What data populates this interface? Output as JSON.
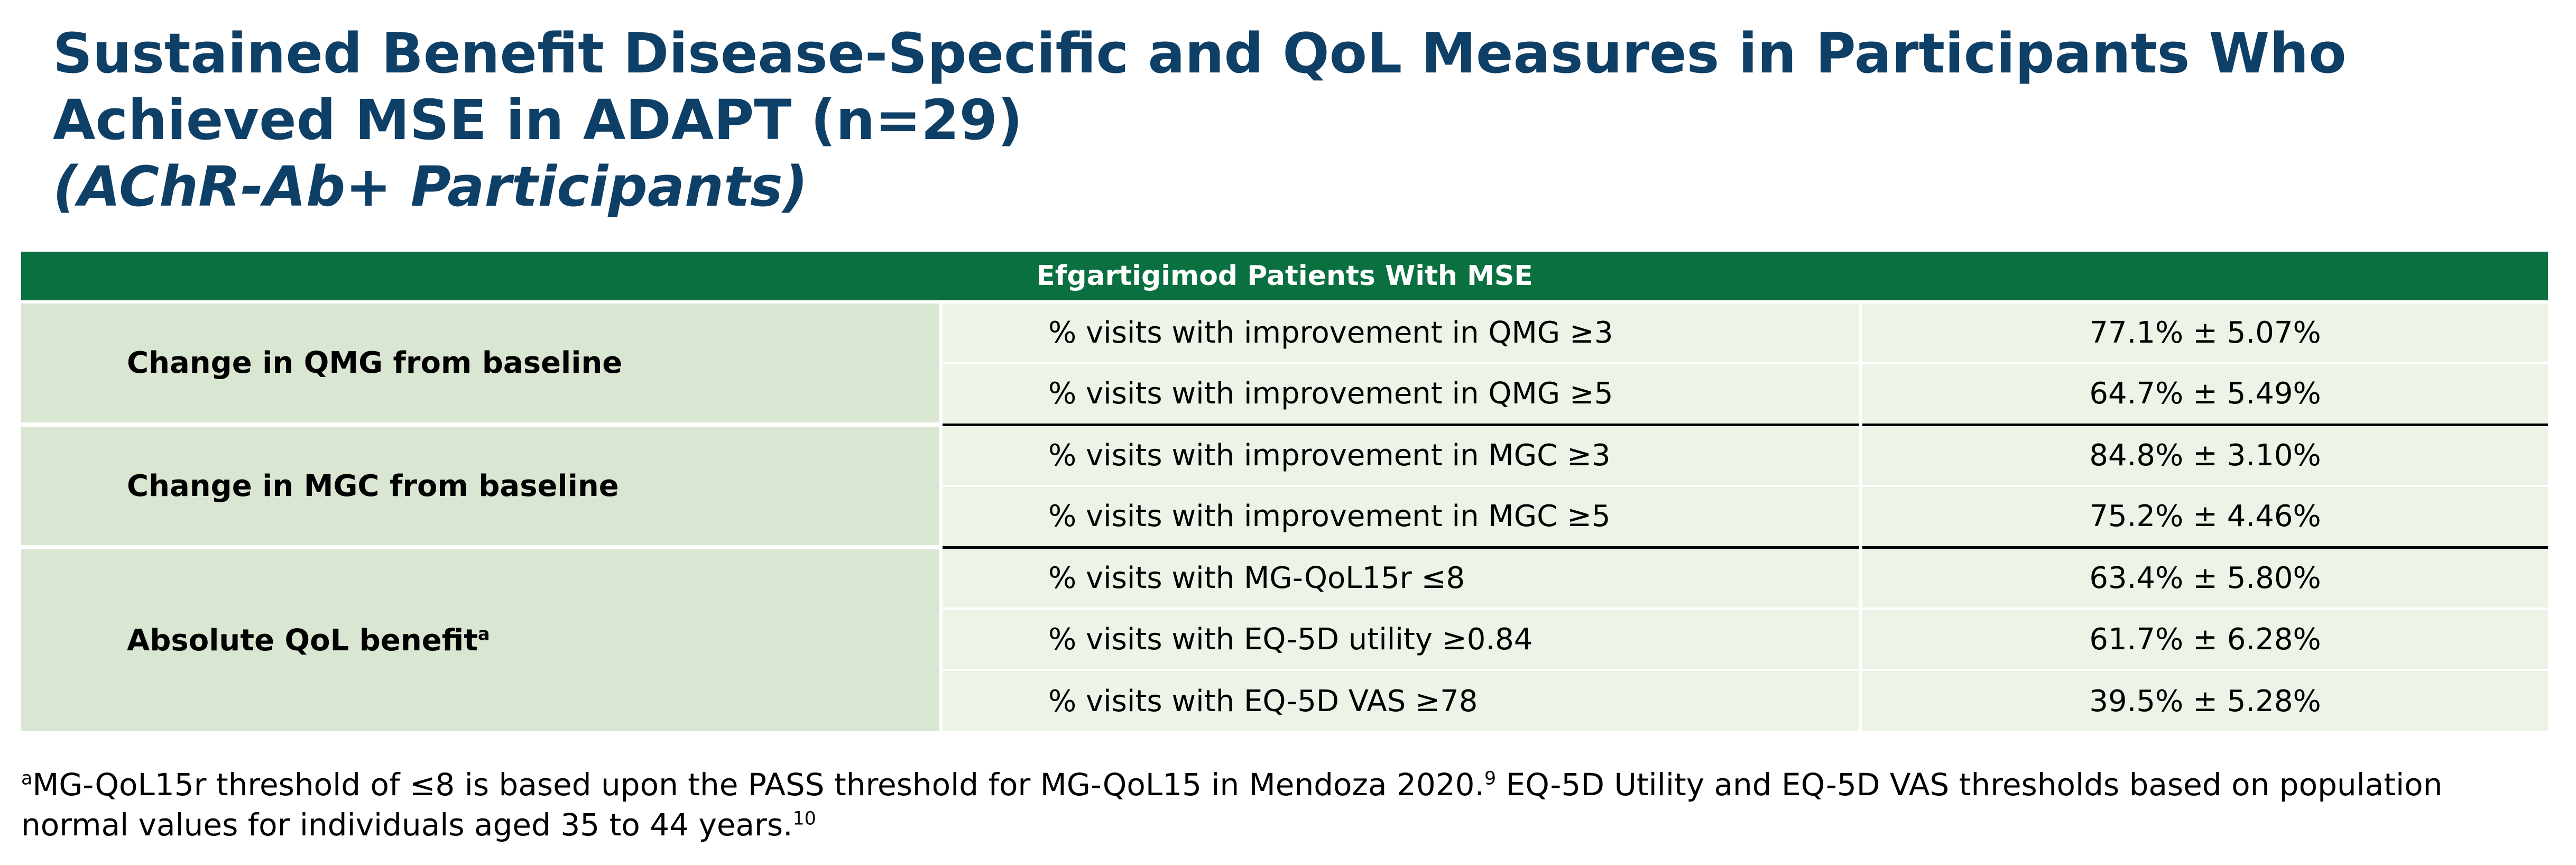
{
  "title": "Sustained Benefit Disease-Specific and QoL Measures in Participants Who Achieved MSE in ADAPT (n=29)",
  "subtitle": "(AChR-Ab+ Participants)",
  "table": {
    "header": "Efgartigimod Patients With MSE",
    "groups": [
      {
        "label": "Change in QMG from baseline",
        "label_sup": "",
        "rows": [
          {
            "metric": "% visits with improvement in QMG ≥3",
            "value": "77.1% ± 5.07%"
          },
          {
            "metric": "% visits with improvement in QMG ≥5",
            "value": "64.7% ± 5.49%"
          }
        ]
      },
      {
        "label": "Change in MGC from baseline",
        "label_sup": "",
        "rows": [
          {
            "metric": "% visits with improvement in MGC ≥3",
            "value": "84.8% ± 3.10%"
          },
          {
            "metric": "% visits with improvement in MGC ≥5",
            "value": "75.2% ± 4.46%"
          }
        ]
      },
      {
        "label": "Absolute QoL benefit",
        "label_sup": "a",
        "rows": [
          {
            "metric": "% visits with MG-QoL15r ≤8",
            "value": "63.4% ± 5.80%"
          },
          {
            "metric": "% visits with EQ-5D utility ≥0.84",
            "value": "61.7% ± 6.28%"
          },
          {
            "metric": "% visits with EQ-5D VAS ≥78",
            "value": "39.5% ± 5.28%"
          }
        ]
      }
    ]
  },
  "footnote": {
    "marker": "a",
    "text_1": "MG-QoL15r threshold of ≤8 is based upon the PASS threshold for MG-QoL15 in Mendoza 2020.",
    "ref_1": "9",
    "text_2": " EQ-5D Utility and EQ-5D VAS thresholds based on population normal values for individuals aged 35 to 44 years.",
    "ref_2": "10"
  }
}
